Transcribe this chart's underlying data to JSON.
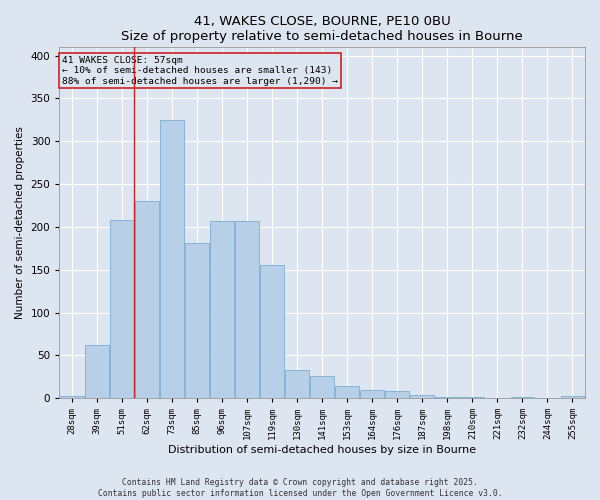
{
  "title": "41, WAKES CLOSE, BOURNE, PE10 0BU",
  "subtitle": "Size of property relative to semi-detached houses in Bourne",
  "xlabel": "Distribution of semi-detached houses by size in Bourne",
  "ylabel": "Number of semi-detached properties",
  "categories": [
    "28sqm",
    "39sqm",
    "51sqm",
    "62sqm",
    "73sqm",
    "85sqm",
    "96sqm",
    "107sqm",
    "119sqm",
    "130sqm",
    "141sqm",
    "153sqm",
    "164sqm",
    "176sqm",
    "187sqm",
    "198sqm",
    "210sqm",
    "221sqm",
    "232sqm",
    "244sqm",
    "255sqm"
  ],
  "values": [
    3,
    62,
    208,
    230,
    325,
    181,
    207,
    207,
    156,
    33,
    26,
    14,
    9,
    8,
    4,
    1,
    1,
    0,
    1,
    0,
    3
  ],
  "bar_color": "#b8cfe8",
  "bar_edge_color": "#7aaed6",
  "background_color": "#dde6f0",
  "grid_color": "#ffffff",
  "vline_color": "#cc2222",
  "vline_x_index": 2.5,
  "annotation_title": "41 WAKES CLOSE: 57sqm",
  "annotation_line1": "← 10% of semi-detached houses are smaller (143)",
  "annotation_line2": "88% of semi-detached houses are larger (1,290) →",
  "annotation_box_color": "#cc2222",
  "ylim": [
    0,
    410
  ],
  "yticks": [
    0,
    50,
    100,
    150,
    200,
    250,
    300,
    350,
    400
  ],
  "footer_line1": "Contains HM Land Registry data © Crown copyright and database right 2025.",
  "footer_line2": "Contains public sector information licensed under the Open Government Licence v3.0."
}
